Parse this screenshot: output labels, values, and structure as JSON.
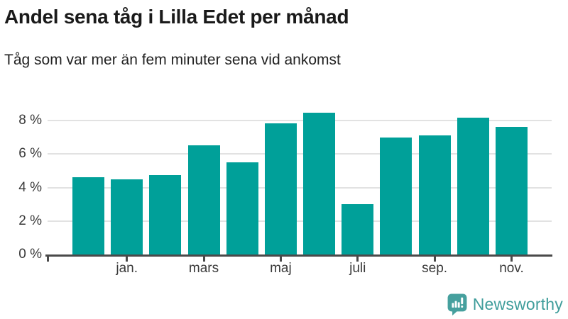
{
  "header": {
    "title": "Andel sena tåg i Lilla Edet per månad",
    "subtitle": "Tåg som var mer än fem minuter sena vid ankomst"
  },
  "chart_data": {
    "type": "bar",
    "title": "Andel sena tåg i Lilla Edet per månad",
    "subtitle": "Tåg som var mer än fem minuter sena vid ankomst",
    "x_tick_labels": [
      "",
      "jan.",
      "",
      "mars",
      "",
      "maj",
      "",
      "juli",
      "",
      "sep.",
      "",
      "nov."
    ],
    "values": [
      4.6,
      4.5,
      4.75,
      6.5,
      5.5,
      7.85,
      8.45,
      3.0,
      7.0,
      7.1,
      8.15,
      7.6
    ],
    "unit": "%",
    "y_ticks": [
      {
        "value": 0,
        "label": "0 %"
      },
      {
        "value": 2,
        "label": "2 %"
      },
      {
        "value": 4,
        "label": "4 %"
      },
      {
        "value": 6,
        "label": "6 %"
      },
      {
        "value": 8,
        "label": "8 %"
      }
    ],
    "ylim": [
      0,
      8.9
    ],
    "grid": true,
    "legend": "none",
    "bar_color": "#00a099",
    "grid_color": "#e2e2e2",
    "axis_color": "#4a4a4a"
  },
  "footer": {
    "brand": "Newsworthy",
    "brand_color": "#3f9d9b",
    "logo_icon": "bar-chart-speech-bubble"
  }
}
